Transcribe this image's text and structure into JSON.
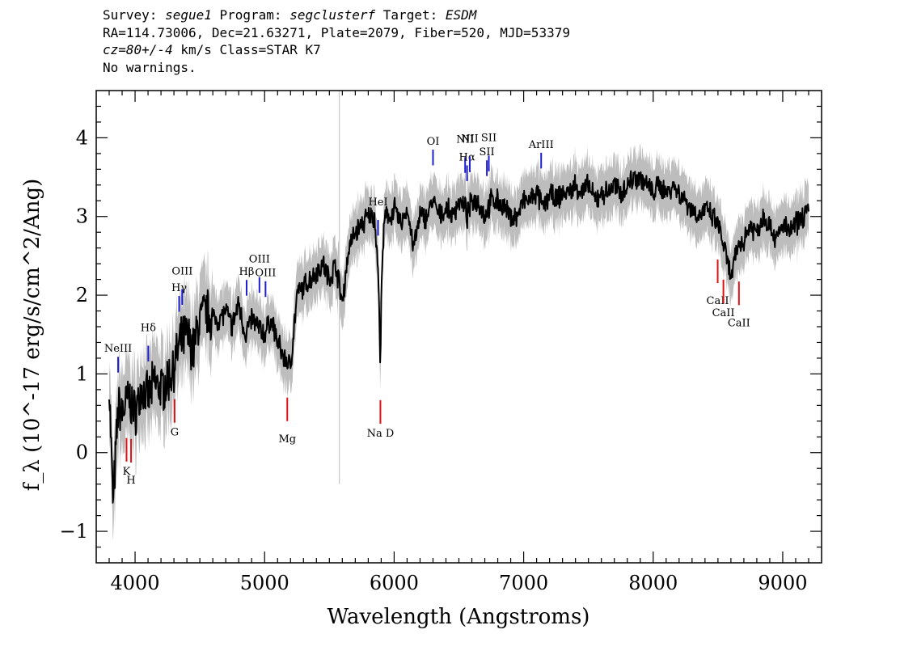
{
  "header": {
    "survey_label": "Survey: ",
    "survey": "segue1",
    "program_label": " Program: ",
    "program": "segclusterf",
    "target_label": " Target: ",
    "target": "ESDM",
    "coords": "RA=114.73006, Dec=21.63271, Plate=2079, Fiber=520, MJD=53379",
    "cz": "cz=80+/-4",
    "cz_rest": " km/s Class=STAR K7",
    "warnings": "No warnings."
  },
  "chart_data": {
    "type": "line",
    "title": "",
    "xlabel": "Wavelength (Angstroms)",
    "ylabel": "f_λ (10^-17 erg/s/cm^2/Ang)",
    "xlim": [
      3700,
      9300
    ],
    "ylim": [
      -1.4,
      4.6
    ],
    "xticks": [
      "4000",
      "5000",
      "6000",
      "7000",
      "8000",
      "9000"
    ],
    "yticks": [
      "−1",
      "0",
      "1",
      "2",
      "3",
      "4"
    ],
    "series": [
      {
        "color": "#000000",
        "x": [
          3800,
          3830,
          3870,
          3900,
          3950,
          4000,
          4050,
          4100,
          4150,
          4200,
          4250,
          4300,
          4350,
          4400,
          4450,
          4500,
          4550,
          4600,
          4650,
          4700,
          4750,
          4800,
          4850,
          4900,
          4950,
          5000,
          5050,
          5100,
          5150,
          5200,
          5250,
          5300,
          5350,
          5400,
          5450,
          5500,
          5550,
          5600,
          5650,
          5700,
          5750,
          5800,
          5850,
          5880,
          5893,
          5905,
          5930,
          5970,
          6000,
          6050,
          6100,
          6150,
          6200,
          6250,
          6300,
          6350,
          6400,
          6450,
          6500,
          6550,
          6563,
          6600,
          6650,
          6700,
          6750,
          6800,
          6850,
          6900,
          6950,
          7000,
          7050,
          7100,
          7150,
          7200,
          7250,
          7300,
          7350,
          7400,
          7450,
          7500,
          7550,
          7600,
          7650,
          7700,
          7750,
          7800,
          7850,
          7900,
          7950,
          8000,
          8050,
          8100,
          8150,
          8200,
          8250,
          8300,
          8350,
          8400,
          8450,
          8500,
          8550,
          8600,
          8650,
          8700,
          8750,
          8800,
          8850,
          8900,
          8950,
          9000,
          9050,
          9100,
          9150,
          9200
        ],
        "y": [
          0.9,
          -0.7,
          0.6,
          0.5,
          0.7,
          0.5,
          0.8,
          0.7,
          0.9,
          0.8,
          0.9,
          1.1,
          1.4,
          1.5,
          1.3,
          1.7,
          1.8,
          1.7,
          1.7,
          1.8,
          1.6,
          1.9,
          1.5,
          1.7,
          1.6,
          1.5,
          1.7,
          1.4,
          1.2,
          1.1,
          2.0,
          2.1,
          2.2,
          2.3,
          2.4,
          2.2,
          2.4,
          1.9,
          2.6,
          2.8,
          2.9,
          3.0,
          3.0,
          2.2,
          1.0,
          2.4,
          3.0,
          3.0,
          3.1,
          2.9,
          3.1,
          2.6,
          3.0,
          3.0,
          3.2,
          3.0,
          3.1,
          3.0,
          3.2,
          3.1,
          3.0,
          3.2,
          3.2,
          3.0,
          3.2,
          3.2,
          3.1,
          3.0,
          3.0,
          3.2,
          3.2,
          3.3,
          3.1,
          3.3,
          3.2,
          3.3,
          3.3,
          3.4,
          3.3,
          3.4,
          3.2,
          3.3,
          3.3,
          3.4,
          3.3,
          3.4,
          3.5,
          3.5,
          3.4,
          3.3,
          3.4,
          3.3,
          3.4,
          3.3,
          3.2,
          3.1,
          3.0,
          3.1,
          3.0,
          2.9,
          2.6,
          2.2,
          2.6,
          2.7,
          2.9,
          2.8,
          3.0,
          2.9,
          2.7,
          2.9,
          2.8,
          2.9,
          3.0,
          3.1
        ]
      }
    ],
    "emission_lines": [
      {
        "label": "NeIII",
        "x": 3869
      },
      {
        "label": "Hδ",
        "x": 4102
      },
      {
        "label": "Hγ",
        "x": 4340
      },
      {
        "label": "OIII",
        "x": 4364
      },
      {
        "label": "Hβ",
        "x": 4861
      },
      {
        "label": "OIII",
        "x": 4960
      },
      {
        "label": "OIII",
        "x": 5007
      },
      {
        "label": "HeI",
        "x": 5876
      },
      {
        "label": "OI",
        "x": 6300
      },
      {
        "label": "NII",
        "x": 6548
      },
      {
        "label": "Hα",
        "x": 6563
      },
      {
        "label": "NII",
        "x": 6584
      },
      {
        "label": "SII",
        "x": 6716
      },
      {
        "label": "SII",
        "x": 6731
      },
      {
        "label": "ArIII",
        "x": 7135
      }
    ],
    "absorption_lines": [
      {
        "label": "K",
        "x": 3934
      },
      {
        "label": "H",
        "x": 3969
      },
      {
        "label": "G",
        "x": 4305
      },
      {
        "label": "Mg",
        "x": 5175
      },
      {
        "label": "Na D",
        "x": 5894
      },
      {
        "label": "CaII",
        "x": 8498
      },
      {
        "label": "CaII",
        "x": 8542
      },
      {
        "label": "CaII",
        "x": 8662
      }
    ],
    "colors": {
      "flux": "#000000",
      "error": "#bdbdbd",
      "emission": "#1f1fd0",
      "absorption": "#e01010",
      "sky": "#c8c8c8"
    }
  }
}
